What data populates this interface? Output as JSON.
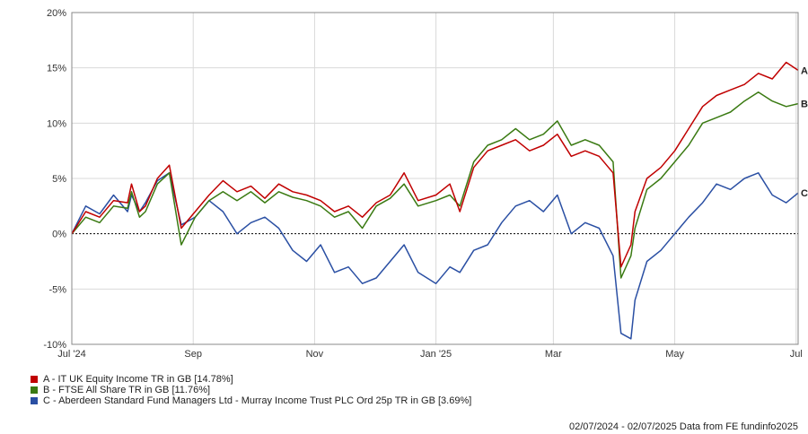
{
  "chart_data": {
    "type": "line",
    "title": "",
    "xlabel": "",
    "ylabel": "",
    "ylim": [
      -10,
      20
    ],
    "y_ticks": [
      "20%",
      "15%",
      "10%",
      "5%",
      "0%",
      "-5%",
      "-10%"
    ],
    "x_ticks": [
      "Jul '24",
      "Sep",
      "Nov",
      "Jan '25",
      "Mar",
      "May",
      "Jul"
    ],
    "grid": true,
    "zero_line": "dotted",
    "legend_position": "bottom-left",
    "series": [
      {
        "name": "A - IT UK Equity Income TR in GB [14.78%]",
        "end_label": "A",
        "color": "#c00000",
        "points": [
          [
            "2024-07-02",
            0
          ],
          [
            "2024-07-09",
            2
          ],
          [
            "2024-07-16",
            1.5
          ],
          [
            "2024-07-23",
            3
          ],
          [
            "2024-07-30",
            2.8
          ],
          [
            "2024-08-01",
            4.5
          ],
          [
            "2024-08-05",
            2
          ],
          [
            "2024-08-08",
            2.5
          ],
          [
            "2024-08-14",
            5
          ],
          [
            "2024-08-20",
            6.2
          ],
          [
            "2024-08-26",
            0.5
          ],
          [
            "2024-09-02",
            2
          ],
          [
            "2024-09-09",
            3.5
          ],
          [
            "2024-09-16",
            4.8
          ],
          [
            "2024-09-23",
            3.8
          ],
          [
            "2024-09-30",
            4.3
          ],
          [
            "2024-10-07",
            3.2
          ],
          [
            "2024-10-14",
            4.5
          ],
          [
            "2024-10-21",
            3.8
          ],
          [
            "2024-10-28",
            3.5
          ],
          [
            "2024-11-04",
            3
          ],
          [
            "2024-11-11",
            2
          ],
          [
            "2024-11-18",
            2.5
          ],
          [
            "2024-11-25",
            1.5
          ],
          [
            "2024-12-02",
            2.8
          ],
          [
            "2024-12-09",
            3.5
          ],
          [
            "2024-12-16",
            5.5
          ],
          [
            "2024-12-23",
            3
          ],
          [
            "2025-01-01",
            3.5
          ],
          [
            "2025-01-08",
            4.5
          ],
          [
            "2025-01-13",
            2
          ],
          [
            "2025-01-20",
            6
          ],
          [
            "2025-01-27",
            7.5
          ],
          [
            "2025-02-03",
            8
          ],
          [
            "2025-02-10",
            8.5
          ],
          [
            "2025-02-17",
            7.5
          ],
          [
            "2025-02-24",
            8
          ],
          [
            "2025-03-03",
            9
          ],
          [
            "2025-03-10",
            7
          ],
          [
            "2025-03-17",
            7.5
          ],
          [
            "2025-03-24",
            7
          ],
          [
            "2025-03-31",
            5.5
          ],
          [
            "2025-04-04",
            -3
          ],
          [
            "2025-04-09",
            -1
          ],
          [
            "2025-04-11",
            2
          ],
          [
            "2025-04-17",
            5
          ],
          [
            "2025-04-24",
            6
          ],
          [
            "2025-05-01",
            7.5
          ],
          [
            "2025-05-08",
            9.5
          ],
          [
            "2025-05-15",
            11.5
          ],
          [
            "2025-05-22",
            12.5
          ],
          [
            "2025-05-29",
            13
          ],
          [
            "2025-06-05",
            13.5
          ],
          [
            "2025-06-12",
            14.5
          ],
          [
            "2025-06-19",
            14
          ],
          [
            "2025-06-26",
            15.5
          ],
          [
            "2025-07-02",
            14.78
          ]
        ]
      },
      {
        "name": "B - FTSE All Share TR in GB [11.76%]",
        "end_label": "B",
        "color": "#3a7a12",
        "points": [
          [
            "2024-07-02",
            0
          ],
          [
            "2024-07-09",
            1.5
          ],
          [
            "2024-07-16",
            1
          ],
          [
            "2024-07-23",
            2.5
          ],
          [
            "2024-07-30",
            2.3
          ],
          [
            "2024-08-01",
            3.8
          ],
          [
            "2024-08-05",
            1.5
          ],
          [
            "2024-08-08",
            2
          ],
          [
            "2024-08-14",
            4.5
          ],
          [
            "2024-08-20",
            5.5
          ],
          [
            "2024-08-26",
            -1
          ],
          [
            "2024-09-02",
            1.5
          ],
          [
            "2024-09-09",
            3
          ],
          [
            "2024-09-16",
            3.8
          ],
          [
            "2024-09-23",
            3
          ],
          [
            "2024-09-30",
            3.8
          ],
          [
            "2024-10-07",
            2.8
          ],
          [
            "2024-10-14",
            3.8
          ],
          [
            "2024-10-21",
            3.3
          ],
          [
            "2024-10-28",
            3
          ],
          [
            "2024-11-04",
            2.5
          ],
          [
            "2024-11-11",
            1.5
          ],
          [
            "2024-11-18",
            2
          ],
          [
            "2024-11-25",
            0.5
          ],
          [
            "2024-12-02",
            2.5
          ],
          [
            "2024-12-09",
            3.2
          ],
          [
            "2024-12-16",
            4.5
          ],
          [
            "2024-12-23",
            2.5
          ],
          [
            "2025-01-01",
            3
          ],
          [
            "2025-01-08",
            3.5
          ],
          [
            "2025-01-13",
            2.5
          ],
          [
            "2025-01-20",
            6.5
          ],
          [
            "2025-01-27",
            8
          ],
          [
            "2025-02-03",
            8.5
          ],
          [
            "2025-02-10",
            9.5
          ],
          [
            "2025-02-17",
            8.5
          ],
          [
            "2025-02-24",
            9
          ],
          [
            "2025-03-03",
            10.2
          ],
          [
            "2025-03-10",
            8
          ],
          [
            "2025-03-17",
            8.5
          ],
          [
            "2025-03-24",
            8
          ],
          [
            "2025-03-31",
            6.5
          ],
          [
            "2025-04-04",
            -4
          ],
          [
            "2025-04-09",
            -2
          ],
          [
            "2025-04-11",
            0.5
          ],
          [
            "2025-04-17",
            4
          ],
          [
            "2025-04-24",
            5
          ],
          [
            "2025-05-01",
            6.5
          ],
          [
            "2025-05-08",
            8
          ],
          [
            "2025-05-15",
            10
          ],
          [
            "2025-05-22",
            10.5
          ],
          [
            "2025-05-29",
            11
          ],
          [
            "2025-06-05",
            12
          ],
          [
            "2025-06-12",
            12.8
          ],
          [
            "2025-06-19",
            12
          ],
          [
            "2025-06-26",
            11.5
          ],
          [
            "2025-07-02",
            11.76
          ]
        ]
      },
      {
        "name": "C - Aberdeen Standard Fund Managers Ltd - Murray Income Trust PLC Ord 25p TR in GB [3.69%]",
        "end_label": "C",
        "color": "#2a4fa3",
        "points": [
          [
            "2024-07-02",
            0
          ],
          [
            "2024-07-09",
            2.5
          ],
          [
            "2024-07-16",
            1.8
          ],
          [
            "2024-07-23",
            3.5
          ],
          [
            "2024-07-30",
            2
          ],
          [
            "2024-08-01",
            3.5
          ],
          [
            "2024-08-05",
            2
          ],
          [
            "2024-08-08",
            2.8
          ],
          [
            "2024-08-14",
            4.8
          ],
          [
            "2024-08-20",
            5.5
          ],
          [
            "2024-08-26",
            0.8
          ],
          [
            "2024-09-02",
            1.5
          ],
          [
            "2024-09-09",
            3
          ],
          [
            "2024-09-16",
            2
          ],
          [
            "2024-09-23",
            0
          ],
          [
            "2024-09-30",
            1
          ],
          [
            "2024-10-07",
            1.5
          ],
          [
            "2024-10-14",
            0.5
          ],
          [
            "2024-10-21",
            -1.5
          ],
          [
            "2024-10-28",
            -2.5
          ],
          [
            "2024-11-04",
            -1
          ],
          [
            "2024-11-11",
            -3.5
          ],
          [
            "2024-11-18",
            -3
          ],
          [
            "2024-11-25",
            -4.5
          ],
          [
            "2024-12-02",
            -4
          ],
          [
            "2024-12-09",
            -2.5
          ],
          [
            "2024-12-16",
            -1
          ],
          [
            "2024-12-23",
            -3.5
          ],
          [
            "2025-01-01",
            -4.5
          ],
          [
            "2025-01-08",
            -3
          ],
          [
            "2025-01-13",
            -3.5
          ],
          [
            "2025-01-20",
            -1.5
          ],
          [
            "2025-01-27",
            -1
          ],
          [
            "2025-02-03",
            1
          ],
          [
            "2025-02-10",
            2.5
          ],
          [
            "2025-02-17",
            3
          ],
          [
            "2025-02-24",
            2
          ],
          [
            "2025-03-03",
            3.5
          ],
          [
            "2025-03-10",
            0
          ],
          [
            "2025-03-17",
            1
          ],
          [
            "2025-03-24",
            0.5
          ],
          [
            "2025-03-31",
            -2
          ],
          [
            "2025-04-04",
            -9
          ],
          [
            "2025-04-09",
            -9.5
          ],
          [
            "2025-04-11",
            -6
          ],
          [
            "2025-04-17",
            -2.5
          ],
          [
            "2025-04-24",
            -1.5
          ],
          [
            "2025-05-01",
            0
          ],
          [
            "2025-05-08",
            1.5
          ],
          [
            "2025-05-15",
            2.8
          ],
          [
            "2025-05-22",
            4.5
          ],
          [
            "2025-05-29",
            4
          ],
          [
            "2025-06-05",
            5
          ],
          [
            "2025-06-12",
            5.5
          ],
          [
            "2025-06-19",
            3.5
          ],
          [
            "2025-06-26",
            2.8
          ],
          [
            "2025-07-02",
            3.69
          ]
        ]
      }
    ]
  },
  "footer": {
    "text": "02/07/2024 - 02/07/2025 Data from FE fundinfo2025"
  }
}
